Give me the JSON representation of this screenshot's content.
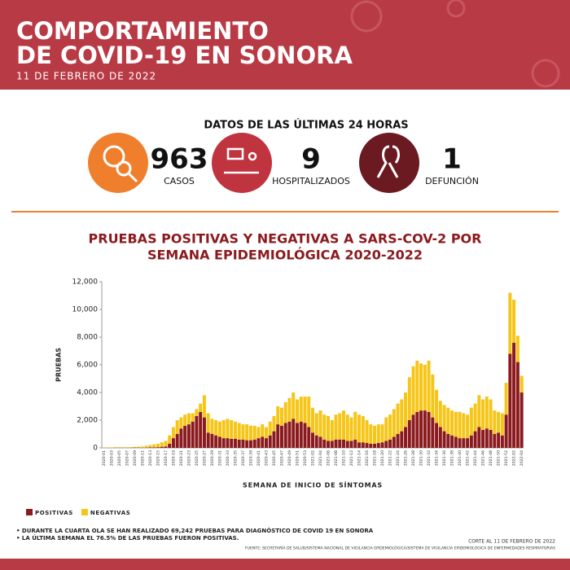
{
  "header": {
    "title_lines": [
      "COMPORTAMIENTO",
      "DE COVID-19 EN SONORA"
    ],
    "date": "11 DE FEBRERO DE 2022"
  },
  "stats": {
    "heading": "DATOS DE LAS ÚLTIMAS 24 HORAS",
    "items": [
      {
        "value": "963",
        "label": "CASOS"
      },
      {
        "value": "9",
        "label": "HOSPITALIZADOS"
      },
      {
        "value": "1",
        "label": "DEFUNCIÓN"
      }
    ]
  },
  "chart_data": {
    "type": "stacked_bar",
    "title_lines": [
      "PRUEBAS POSITIVAS Y NEGATIVAS A SARS-COV-2 POR",
      "SEMANA EPIDEMIOLÓGICA 2020-2022"
    ],
    "y_label": "PRUEBAS",
    "x_label": "SEMANA DE INICIO DE SÍNTOMAS",
    "categories": [
      "2020-01",
      null,
      "2020-03",
      null,
      "2020-05",
      null,
      "2020-07",
      null,
      "2020-09",
      null,
      "2020-11",
      null,
      "2020-13",
      null,
      "2020-15",
      null,
      "2020-17",
      null,
      "2020-19",
      null,
      "2020-21",
      null,
      "2020-23",
      null,
      "2020-25",
      null,
      "2020-27",
      null,
      "2020-29",
      null,
      "2020-31",
      null,
      "2020-33",
      null,
      "2020-35",
      null,
      "2020-37",
      null,
      "2020-39",
      null,
      "2020-41",
      null,
      "2020-43",
      null,
      "2020-45",
      null,
      "2020-47",
      null,
      "2020-49",
      null,
      "2020-51",
      null,
      "2020-53",
      null,
      "2021-02",
      null,
      "2021-04",
      null,
      "2021-06",
      null,
      "2021-08",
      null,
      "2021-10",
      null,
      "2021-12",
      null,
      "2021-14",
      null,
      "2021-16",
      null,
      "2021-18",
      null,
      "2021-20",
      null,
      "2021-22",
      null,
      "2021-24",
      null,
      "2021-26",
      null,
      "2021-28",
      null,
      "2021-30",
      null,
      "2021-32",
      null,
      "2021-34",
      null,
      "2021-36",
      null,
      "2021-38",
      null,
      "2021-40",
      null,
      "2021-42",
      null,
      "2021-44",
      null,
      "2021-46",
      null,
      "2021-48",
      null,
      "2021-50",
      null,
      "2021-52",
      null,
      "2022-02",
      null,
      "2022-04"
    ],
    "series": [
      {
        "name": "POSITIVAS",
        "color": "#8b1a1e",
        "values": [
          5,
          5,
          5,
          10,
          10,
          10,
          10,
          10,
          20,
          20,
          10,
          20,
          30,
          40,
          50,
          80,
          100,
          300,
          700,
          1000,
          1400,
          1600,
          1700,
          1900,
          2300,
          2600,
          2200,
          1100,
          1000,
          900,
          800,
          700,
          700,
          650,
          650,
          600,
          600,
          550,
          550,
          600,
          700,
          800,
          700,
          900,
          1200,
          1700,
          1600,
          1800,
          1900,
          2100,
          1800,
          1900,
          1800,
          1500,
          1100,
          900,
          800,
          600,
          500,
          500,
          600,
          600,
          600,
          500,
          500,
          600,
          400,
          400,
          350,
          300,
          300,
          350,
          400,
          500,
          600,
          800,
          1000,
          1200,
          1500,
          2000,
          2400,
          2600,
          2700,
          2700,
          2600,
          2200,
          1800,
          1500,
          1200,
          1000,
          900,
          800,
          700,
          700,
          700,
          900,
          1200,
          1500,
          1300,
          1400,
          1300,
          1000,
          1100,
          900,
          2400,
          6800,
          7600,
          6200,
          4000
        ]
      },
      {
        "name": "NEGATIVAS",
        "color": "#f5c518",
        "values": [
          20,
          30,
          30,
          40,
          40,
          40,
          40,
          50,
          50,
          60,
          90,
          130,
          170,
          210,
          250,
          320,
          400,
          600,
          800,
          1000,
          800,
          800,
          800,
          600,
          500,
          600,
          1600,
          1400,
          1100,
          1100,
          1100,
          1300,
          1400,
          1350,
          1250,
          1200,
          1100,
          1150,
          1050,
          1000,
          800,
          900,
          800,
          1000,
          1100,
          1300,
          1300,
          1500,
          1700,
          1900,
          1700,
          1800,
          1900,
          2200,
          1800,
          1600,
          1900,
          1800,
          1800,
          1500,
          1800,
          1900,
          2100,
          1900,
          1700,
          2000,
          2000,
          1900,
          1650,
          1400,
          1300,
          1350,
          1300,
          1700,
          1800,
          2000,
          2200,
          2300,
          2500,
          3100,
          3500,
          3700,
          3400,
          3300,
          3700,
          3100,
          2400,
          1900,
          1900,
          1900,
          1800,
          1800,
          1900,
          1800,
          1700,
          2000,
          2000,
          2300,
          2200,
          2300,
          2200,
          1700,
          1500,
          1600,
          2300,
          4400,
          3100,
          1900,
          1200
        ]
      }
    ],
    "ylim": [
      0,
      12000
    ],
    "yticks": [
      0,
      {
        "value": 2000,
        "label": "2,000"
      },
      {
        "value": 4000,
        "label": "4,000"
      },
      {
        "value": 6000,
        "label": "6,000"
      },
      {
        "value": 8000,
        "label": "8,000"
      },
      {
        "value": 10000,
        "label": "10,000"
      },
      {
        "value": 12000,
        "label": "12,000"
      }
    ],
    "legend": "bottom-left"
  },
  "notes": [
    "• DURANTE LA CUARTA OLA SE HAN REALIZADO 69,242 PRUEBAS PARA DIAGNÓSTICO DE COVID 19 EN SONORA",
    "• LA ÚLTIMA SEMANA EL 76.5% DE LAS PRUEBAS FUERON POSITIVAS."
  ],
  "footer": {
    "cutoff": "CORTE AL 11 DE FEBRERO DE 2022",
    "source": "FUENTE: SECRETARÍA DE SALUD/SISTEMA NACIONAL DE VIGILANCIA EPIDEMIOLÓGICA/SISTEMA DE VIGILANCIA EPIDEMIOLÓGICA DE ENFERMEDADES RESPIRATORIAS"
  }
}
